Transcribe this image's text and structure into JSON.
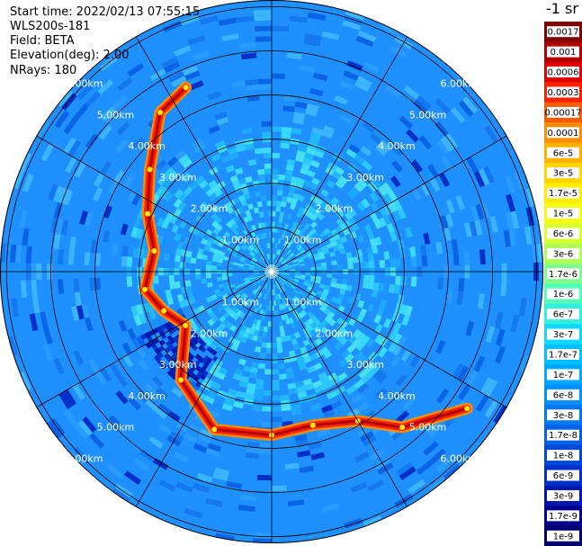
{
  "info": {
    "start_time": "Start time: 2022/02/13 07:55:15",
    "site": "WLS200s-181",
    "field": "Field: BETA",
    "elevation": "Elevation(deg): 2.00",
    "nrays": "NRays: 180"
  },
  "colorbar": {
    "title": "-1 sr",
    "labels": [
      "0.0017",
      "0.001",
      "0.0006",
      "0.0003",
      "0.00017",
      "0.0001",
      "6e-5",
      "3e-5",
      "1.7e-5",
      "1e-5",
      "6e-6",
      "3e-6",
      "1.7e-6",
      "1e-6",
      "6e-7",
      "3e-7",
      "1.7e-7",
      "1e-7",
      "6e-8",
      "3e-8",
      "1.7e-8",
      "1e-8",
      "6e-9",
      "3e-9",
      "1.7e-9",
      "1e-9"
    ],
    "colors": [
      "#7f0000",
      "#b00000",
      "#e00000",
      "#ff2000",
      "#ff5a00",
      "#ff8c00",
      "#ffb000",
      "#ffd200",
      "#ffee00",
      "#f2ff10",
      "#d8ff30",
      "#b0ff58",
      "#7dff8a",
      "#50ffb8",
      "#30f0e0",
      "#10d8ff",
      "#00c0ff",
      "#00a8ff",
      "#0090ff",
      "#0078f8",
      "#0060e8",
      "#0048d8",
      "#0030c8",
      "#0018b0",
      "#000090",
      "#000070"
    ]
  },
  "chart_data": {
    "type": "heatmap",
    "title": "",
    "projection": "polar",
    "range_unit": "km",
    "ring_ranges_km": [
      1,
      2,
      3,
      4,
      5,
      6
    ],
    "ring_labels": [
      "1.00km",
      "2.00km",
      "3.00km",
      "4.00km",
      "5.00km",
      "6.00km"
    ],
    "max_range_km": 6.15,
    "spoke_count": 12,
    "nrays": 180,
    "background_level": "1e-7",
    "near_field_level": "3e-7",
    "high_backscatter_band": [
      {
        "azimuth_deg": 335,
        "range_km": 4.6
      },
      {
        "azimuth_deg": 325,
        "range_km": 4.4
      },
      {
        "azimuth_deg": 310,
        "range_km": 3.6
      },
      {
        "azimuth_deg": 295,
        "range_km": 3.1
      },
      {
        "azimuth_deg": 280,
        "range_km": 2.7
      },
      {
        "azimuth_deg": 262,
        "range_km": 2.9
      },
      {
        "azimuth_deg": 250,
        "range_km": 2.6
      },
      {
        "azimuth_deg": 238,
        "range_km": 2.3
      },
      {
        "azimuth_deg": 220,
        "range_km": 3.2
      },
      {
        "azimuth_deg": 200,
        "range_km": 3.8
      },
      {
        "azimuth_deg": 180,
        "range_km": 3.7
      },
      {
        "azimuth_deg": 165,
        "range_km": 3.6
      },
      {
        "azimuth_deg": 150,
        "range_km": 3.9
      },
      {
        "azimuth_deg": 140,
        "range_km": 4.6
      },
      {
        "azimuth_deg": 125,
        "range_km": 5.4
      }
    ]
  }
}
